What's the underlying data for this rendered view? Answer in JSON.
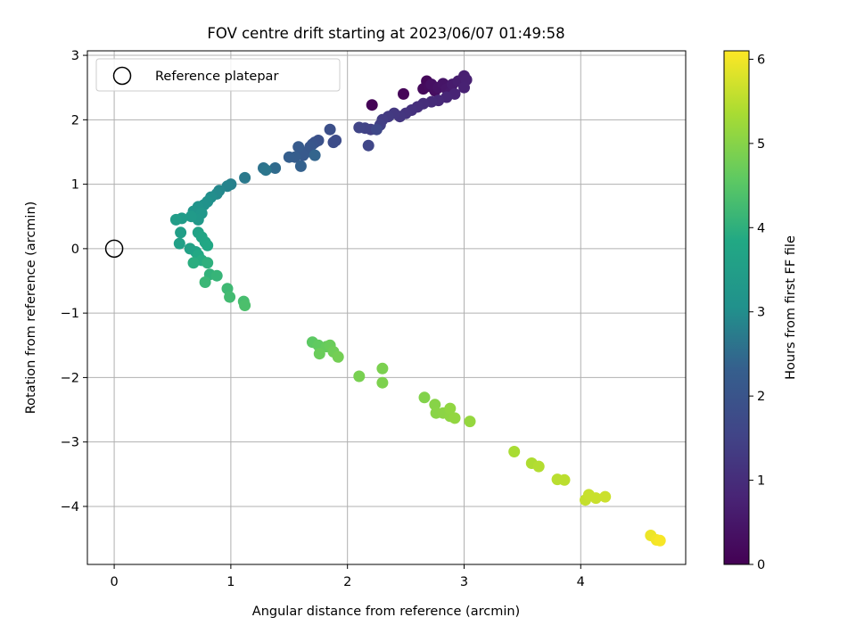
{
  "chart_data": {
    "type": "scatter",
    "title": "FOV centre drift starting at 2023/06/07 01:49:58",
    "xlabel": "Angular distance from reference (arcmin)",
    "ylabel": "Rotation from reference (arcmin)",
    "xlim": [
      -0.23,
      4.9
    ],
    "ylim": [
      -4.9,
      3.07
    ],
    "xticks": [
      0,
      1,
      2,
      3,
      4
    ],
    "xtick_labels": [
      "0",
      "1",
      "2",
      "3",
      "4"
    ],
    "yticks": [
      -4,
      -3,
      -2,
      -1,
      0,
      1,
      2,
      3
    ],
    "ytick_labels": [
      "−4",
      "−3",
      "−2",
      "−1",
      "0",
      "1",
      "2",
      "3"
    ],
    "grid": true,
    "legend": {
      "placement": "upper-left",
      "entries": [
        "Reference platepar"
      ]
    },
    "reference_point": {
      "x": 0,
      "y": 0
    },
    "colorbar": {
      "label": "Hours from first FF file",
      "colormap": "viridis",
      "range": [
        0,
        6.1
      ],
      "ticks": [
        0,
        1,
        2,
        3,
        4,
        5,
        6
      ],
      "tick_labels": [
        "0",
        "1",
        "2",
        "3",
        "4",
        "5",
        "6"
      ]
    },
    "series": [
      {
        "columns": [
          "x",
          "y",
          "hours"
        ],
        "points": [
          [
            2.21,
            2.23,
            0.05
          ],
          [
            2.48,
            2.4,
            0.1
          ],
          [
            2.68,
            2.6,
            0.15
          ],
          [
            2.65,
            2.48,
            0.2
          ],
          [
            2.7,
            2.52,
            0.25
          ],
          [
            2.75,
            2.45,
            0.3
          ],
          [
            2.72,
            2.55,
            0.35
          ],
          [
            2.78,
            2.5,
            0.4
          ],
          [
            2.82,
            2.56,
            0.45
          ],
          [
            2.85,
            2.48,
            0.5
          ],
          [
            2.88,
            2.42,
            0.55
          ],
          [
            2.9,
            2.55,
            0.6
          ],
          [
            2.95,
            2.6,
            0.65
          ],
          [
            3.0,
            2.68,
            0.7
          ],
          [
            3.02,
            2.62,
            0.72
          ],
          [
            3.0,
            2.5,
            0.75
          ],
          [
            2.92,
            2.4,
            0.8
          ],
          [
            2.85,
            2.35,
            0.85
          ],
          [
            2.78,
            2.3,
            0.9
          ],
          [
            2.72,
            2.28,
            0.95
          ],
          [
            2.65,
            2.25,
            1.0
          ],
          [
            2.6,
            2.2,
            1.05
          ],
          [
            2.55,
            2.15,
            1.1
          ],
          [
            2.5,
            2.1,
            1.15
          ],
          [
            2.45,
            2.05,
            1.2
          ],
          [
            2.4,
            2.1,
            1.25
          ],
          [
            2.35,
            2.05,
            1.3
          ],
          [
            2.3,
            2.0,
            1.35
          ],
          [
            2.28,
            1.92,
            1.4
          ],
          [
            2.2,
            1.85,
            1.45
          ],
          [
            2.15,
            1.87,
            1.5
          ],
          [
            2.1,
            1.88,
            1.55
          ],
          [
            2.18,
            1.6,
            1.6
          ],
          [
            2.25,
            1.85,
            1.65
          ],
          [
            1.9,
            1.68,
            1.75
          ],
          [
            1.88,
            1.65,
            1.8
          ],
          [
            1.85,
            1.85,
            1.85
          ],
          [
            1.75,
            1.68,
            1.9
          ],
          [
            1.72,
            1.65,
            1.95
          ],
          [
            1.7,
            1.62,
            2.0
          ],
          [
            1.68,
            1.58,
            2.05
          ],
          [
            1.65,
            1.5,
            2.1
          ],
          [
            1.62,
            1.45,
            2.15
          ],
          [
            1.58,
            1.58,
            2.2
          ],
          [
            1.55,
            1.42,
            2.25
          ],
          [
            1.5,
            1.42,
            2.3
          ],
          [
            1.6,
            1.28,
            2.35
          ],
          [
            1.72,
            1.45,
            2.4
          ],
          [
            1.38,
            1.25,
            2.5
          ],
          [
            1.28,
            1.25,
            2.6
          ],
          [
            1.3,
            1.22,
            2.65
          ],
          [
            1.12,
            1.1,
            2.7
          ],
          [
            1.0,
            1.0,
            2.8
          ],
          [
            0.97,
            0.97,
            2.85
          ],
          [
            0.9,
            0.9,
            2.9
          ],
          [
            0.88,
            0.85,
            2.95
          ],
          [
            0.83,
            0.8,
            3.0
          ],
          [
            0.8,
            0.73,
            3.05
          ],
          [
            0.77,
            0.68,
            3.1
          ],
          [
            0.72,
            0.65,
            3.15
          ],
          [
            0.68,
            0.58,
            3.2
          ],
          [
            0.75,
            0.55,
            3.25
          ],
          [
            0.72,
            0.45,
            3.3
          ],
          [
            0.66,
            0.5,
            3.35
          ],
          [
            0.58,
            0.47,
            3.4
          ],
          [
            0.53,
            0.45,
            3.45
          ],
          [
            0.57,
            0.25,
            3.5
          ],
          [
            0.56,
            0.08,
            3.55
          ],
          [
            0.65,
            0.0,
            3.6
          ],
          [
            0.7,
            -0.05,
            3.62
          ],
          [
            0.72,
            0.25,
            3.65
          ],
          [
            0.75,
            0.18,
            3.7
          ],
          [
            0.78,
            0.1,
            3.75
          ],
          [
            0.8,
            0.05,
            3.8
          ],
          [
            0.72,
            -0.1,
            3.85
          ],
          [
            0.75,
            -0.18,
            3.9
          ],
          [
            0.68,
            -0.22,
            3.95
          ],
          [
            0.8,
            -0.22,
            4.0
          ],
          [
            0.82,
            -0.4,
            4.05
          ],
          [
            0.88,
            -0.42,
            4.1
          ],
          [
            0.78,
            -0.52,
            4.15
          ],
          [
            0.97,
            -0.62,
            4.2
          ],
          [
            0.99,
            -0.75,
            4.25
          ],
          [
            1.11,
            -0.82,
            4.3
          ],
          [
            1.12,
            -0.88,
            4.35
          ],
          [
            1.7,
            -1.45,
            4.55
          ],
          [
            1.75,
            -1.5,
            4.6
          ],
          [
            1.82,
            -1.52,
            4.65
          ],
          [
            1.85,
            -1.5,
            4.7
          ],
          [
            1.88,
            -1.6,
            4.75
          ],
          [
            1.92,
            -1.68,
            4.8
          ],
          [
            1.76,
            -1.63,
            4.7
          ],
          [
            2.1,
            -1.98,
            4.85
          ],
          [
            2.3,
            -1.86,
            4.88
          ],
          [
            2.3,
            -2.08,
            4.9
          ],
          [
            2.66,
            -2.31,
            4.95
          ],
          [
            2.75,
            -2.42,
            5.0
          ],
          [
            2.76,
            -2.55,
            5.02
          ],
          [
            2.82,
            -2.55,
            5.05
          ],
          [
            2.88,
            -2.6,
            5.08
          ],
          [
            2.88,
            -2.48,
            5.1
          ],
          [
            2.92,
            -2.63,
            5.12
          ],
          [
            3.05,
            -2.68,
            5.15
          ],
          [
            3.43,
            -3.15,
            5.35
          ],
          [
            3.58,
            -3.33,
            5.4
          ],
          [
            3.64,
            -3.38,
            5.45
          ],
          [
            3.8,
            -3.58,
            5.5
          ],
          [
            3.86,
            -3.59,
            5.52
          ],
          [
            4.04,
            -3.9,
            5.6
          ],
          [
            4.07,
            -3.82,
            5.62
          ],
          [
            4.13,
            -3.87,
            5.64
          ],
          [
            4.21,
            -3.85,
            5.66
          ],
          [
            4.6,
            -4.45,
            5.95
          ],
          [
            4.65,
            -4.52,
            6.0
          ],
          [
            4.68,
            -4.53,
            6.05
          ]
        ]
      }
    ]
  }
}
